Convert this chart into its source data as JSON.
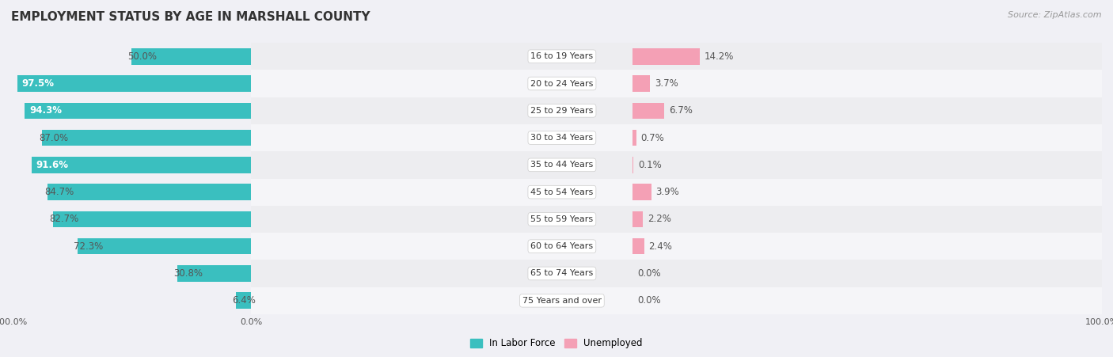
{
  "title": "EMPLOYMENT STATUS BY AGE IN MARSHALL COUNTY",
  "source": "Source: ZipAtlas.com",
  "categories": [
    "16 to 19 Years",
    "20 to 24 Years",
    "25 to 29 Years",
    "30 to 34 Years",
    "35 to 44 Years",
    "45 to 54 Years",
    "55 to 59 Years",
    "60 to 64 Years",
    "65 to 74 Years",
    "75 Years and over"
  ],
  "labor_force": [
    50.0,
    97.5,
    94.3,
    87.0,
    91.6,
    84.7,
    82.7,
    72.3,
    30.8,
    6.4
  ],
  "unemployed": [
    14.2,
    3.7,
    6.7,
    0.7,
    0.1,
    3.9,
    2.2,
    2.4,
    0.0,
    0.0
  ],
  "labor_color": "#3abfbf",
  "unemployed_color": "#f4a0b5",
  "bar_height": 0.6,
  "background_color": "#f0f0f5",
  "row_even": "#ededf0",
  "row_odd": "#f5f5f8",
  "legend_labor": "In Labor Force",
  "legend_unemployed": "Unemployed",
  "title_fontsize": 11,
  "label_fontsize": 8.5,
  "tick_fontsize": 8,
  "source_fontsize": 8,
  "cat_label_threshold": 85,
  "white_text_threshold": 88
}
